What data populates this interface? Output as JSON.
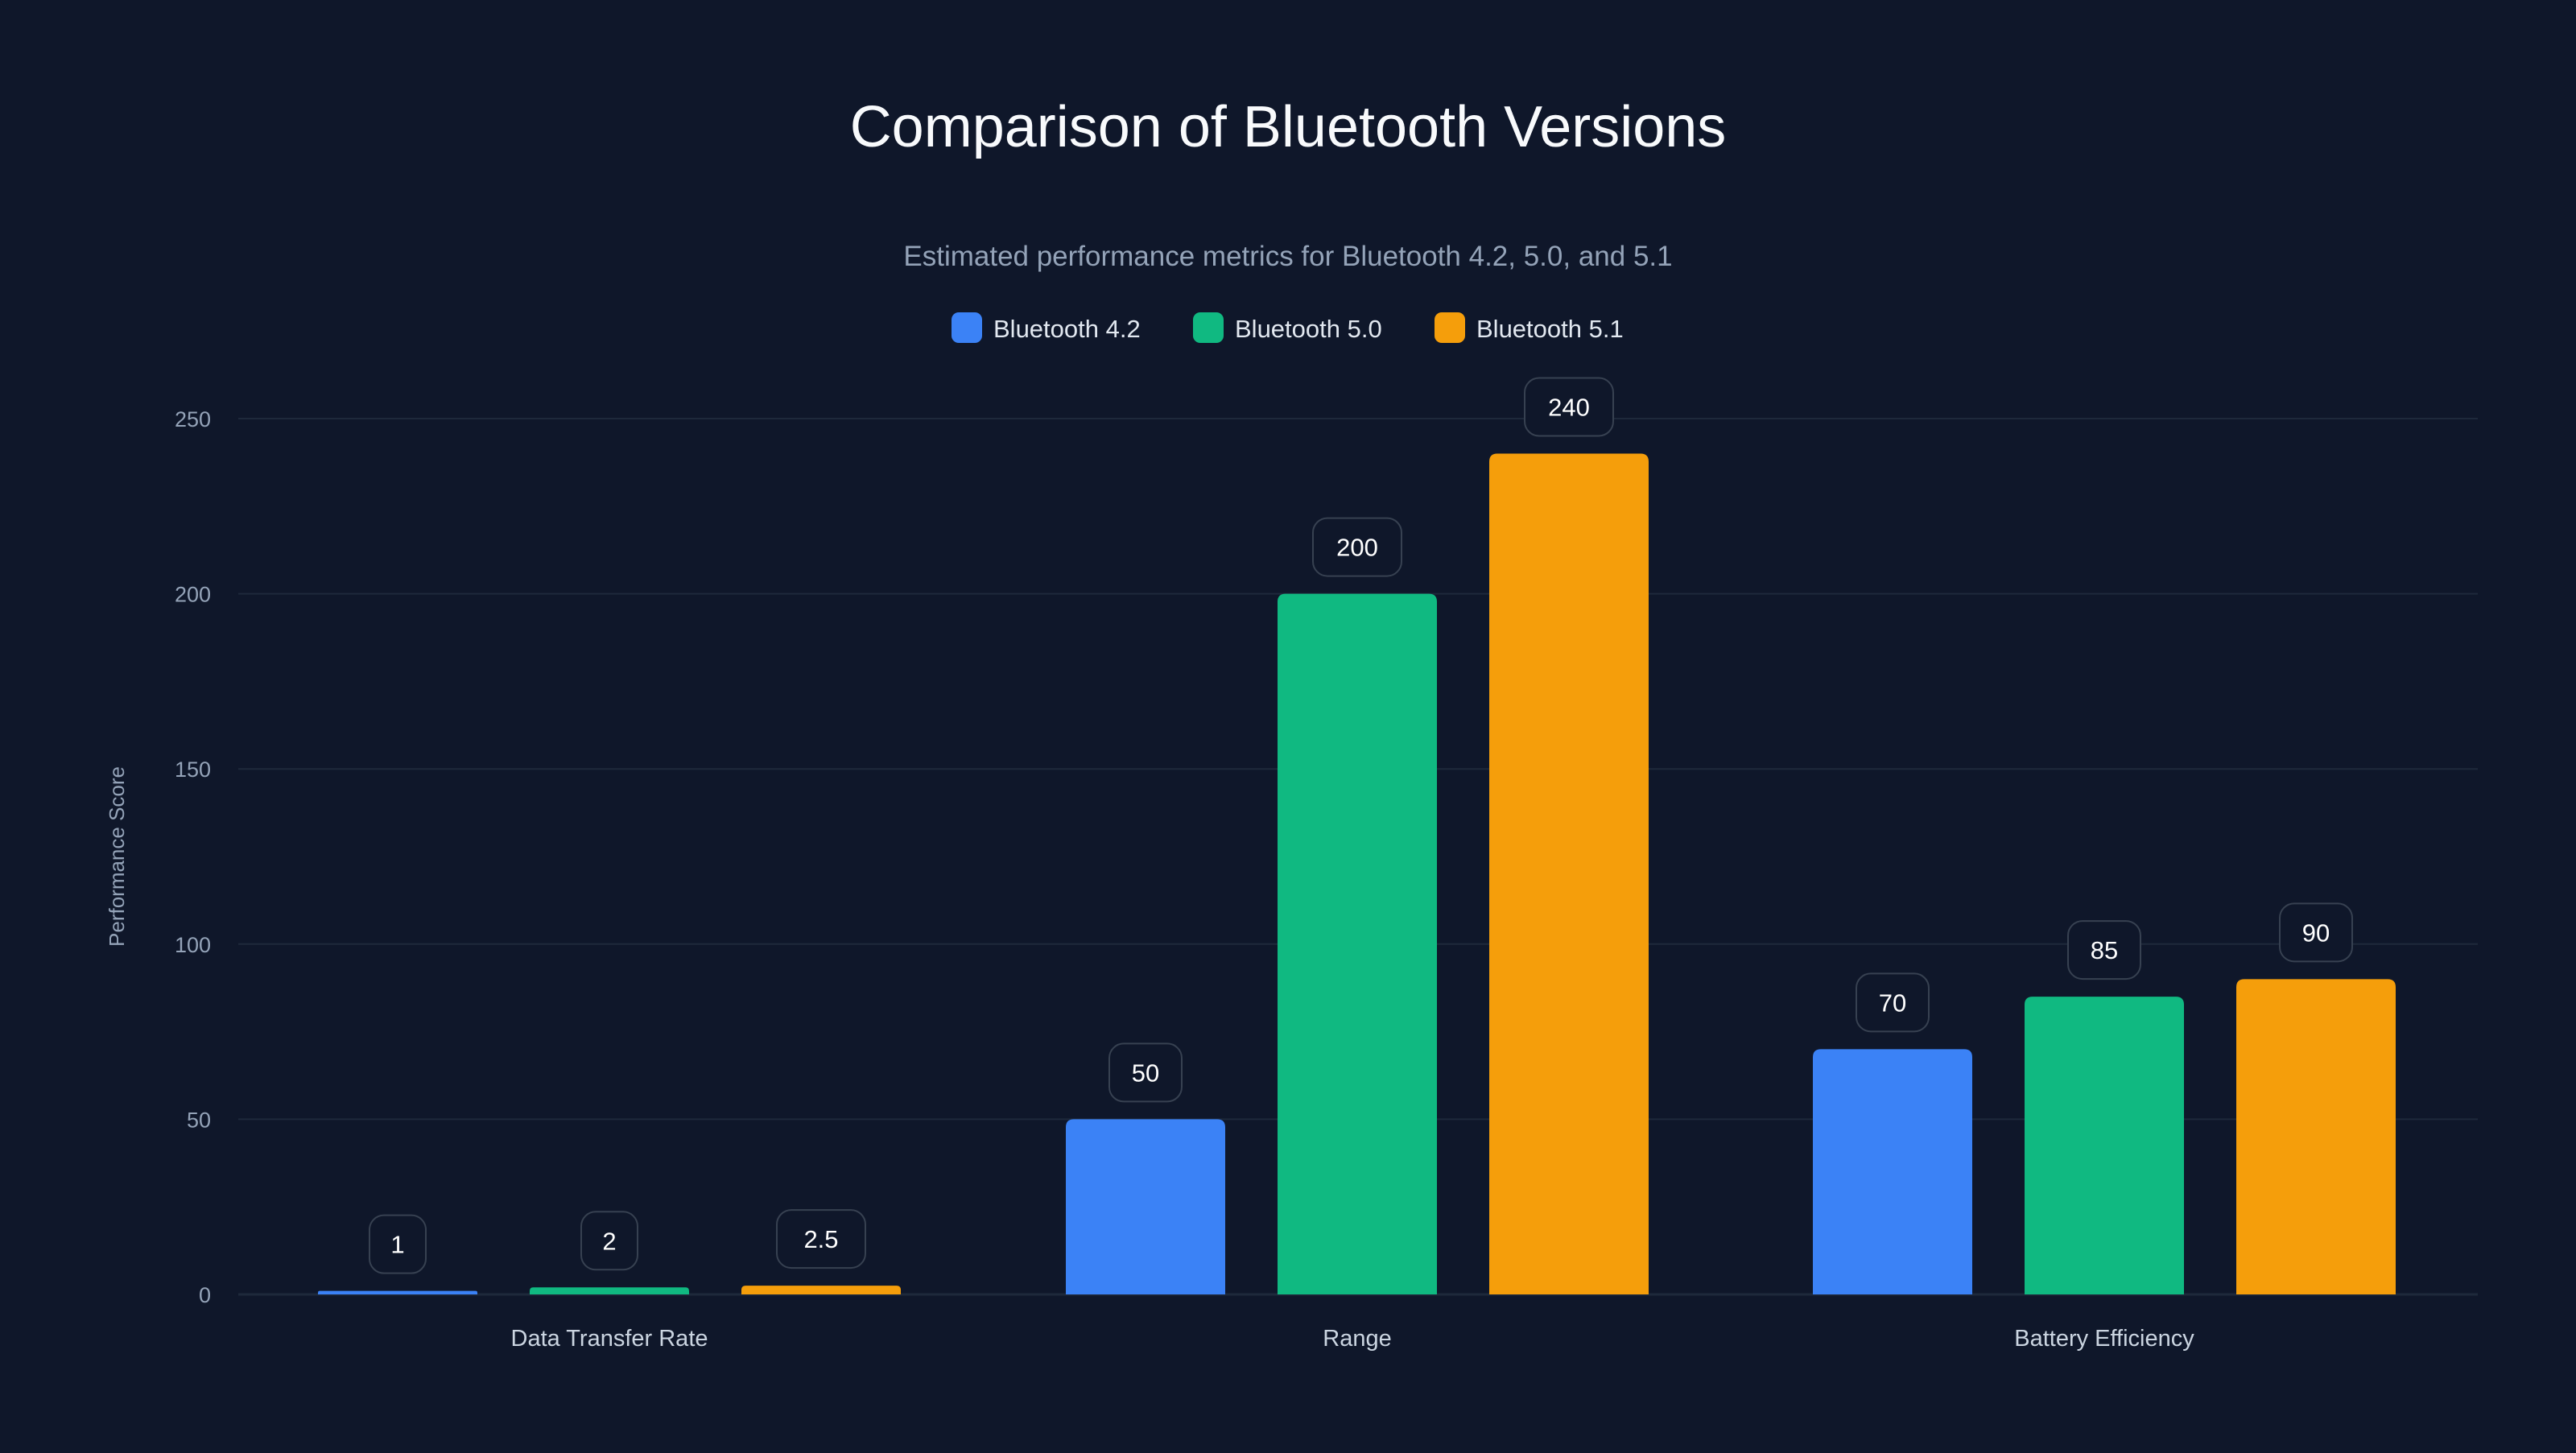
{
  "chart_data": {
    "type": "bar",
    "title": "Comparison of Bluetooth Versions",
    "subtitle": "Estimated performance metrics for Bluetooth 4.2, 5.0, and 5.1",
    "xlabel": "",
    "ylabel": "Performance Score",
    "ylim": [
      0,
      250
    ],
    "yticks": [
      0,
      50,
      100,
      150,
      200,
      250
    ],
    "grid": true,
    "legend_position": "top-center",
    "categories": [
      "Data Transfer Rate",
      "Range",
      "Battery Efficiency"
    ],
    "series": [
      {
        "name": "Bluetooth 4.2",
        "color": "#3b82f6",
        "values": [
          1,
          50,
          70
        ],
        "labels": [
          "1",
          "50",
          "70"
        ]
      },
      {
        "name": "Bluetooth 5.0",
        "color": "#10b981",
        "values": [
          2,
          200,
          85
        ],
        "labels": [
          "2",
          "200",
          "85"
        ]
      },
      {
        "name": "Bluetooth 5.1",
        "color": "#f59e0b",
        "values": [
          2.5,
          240,
          90
        ],
        "labels": [
          "2.5",
          "240",
          "90"
        ]
      }
    ]
  }
}
